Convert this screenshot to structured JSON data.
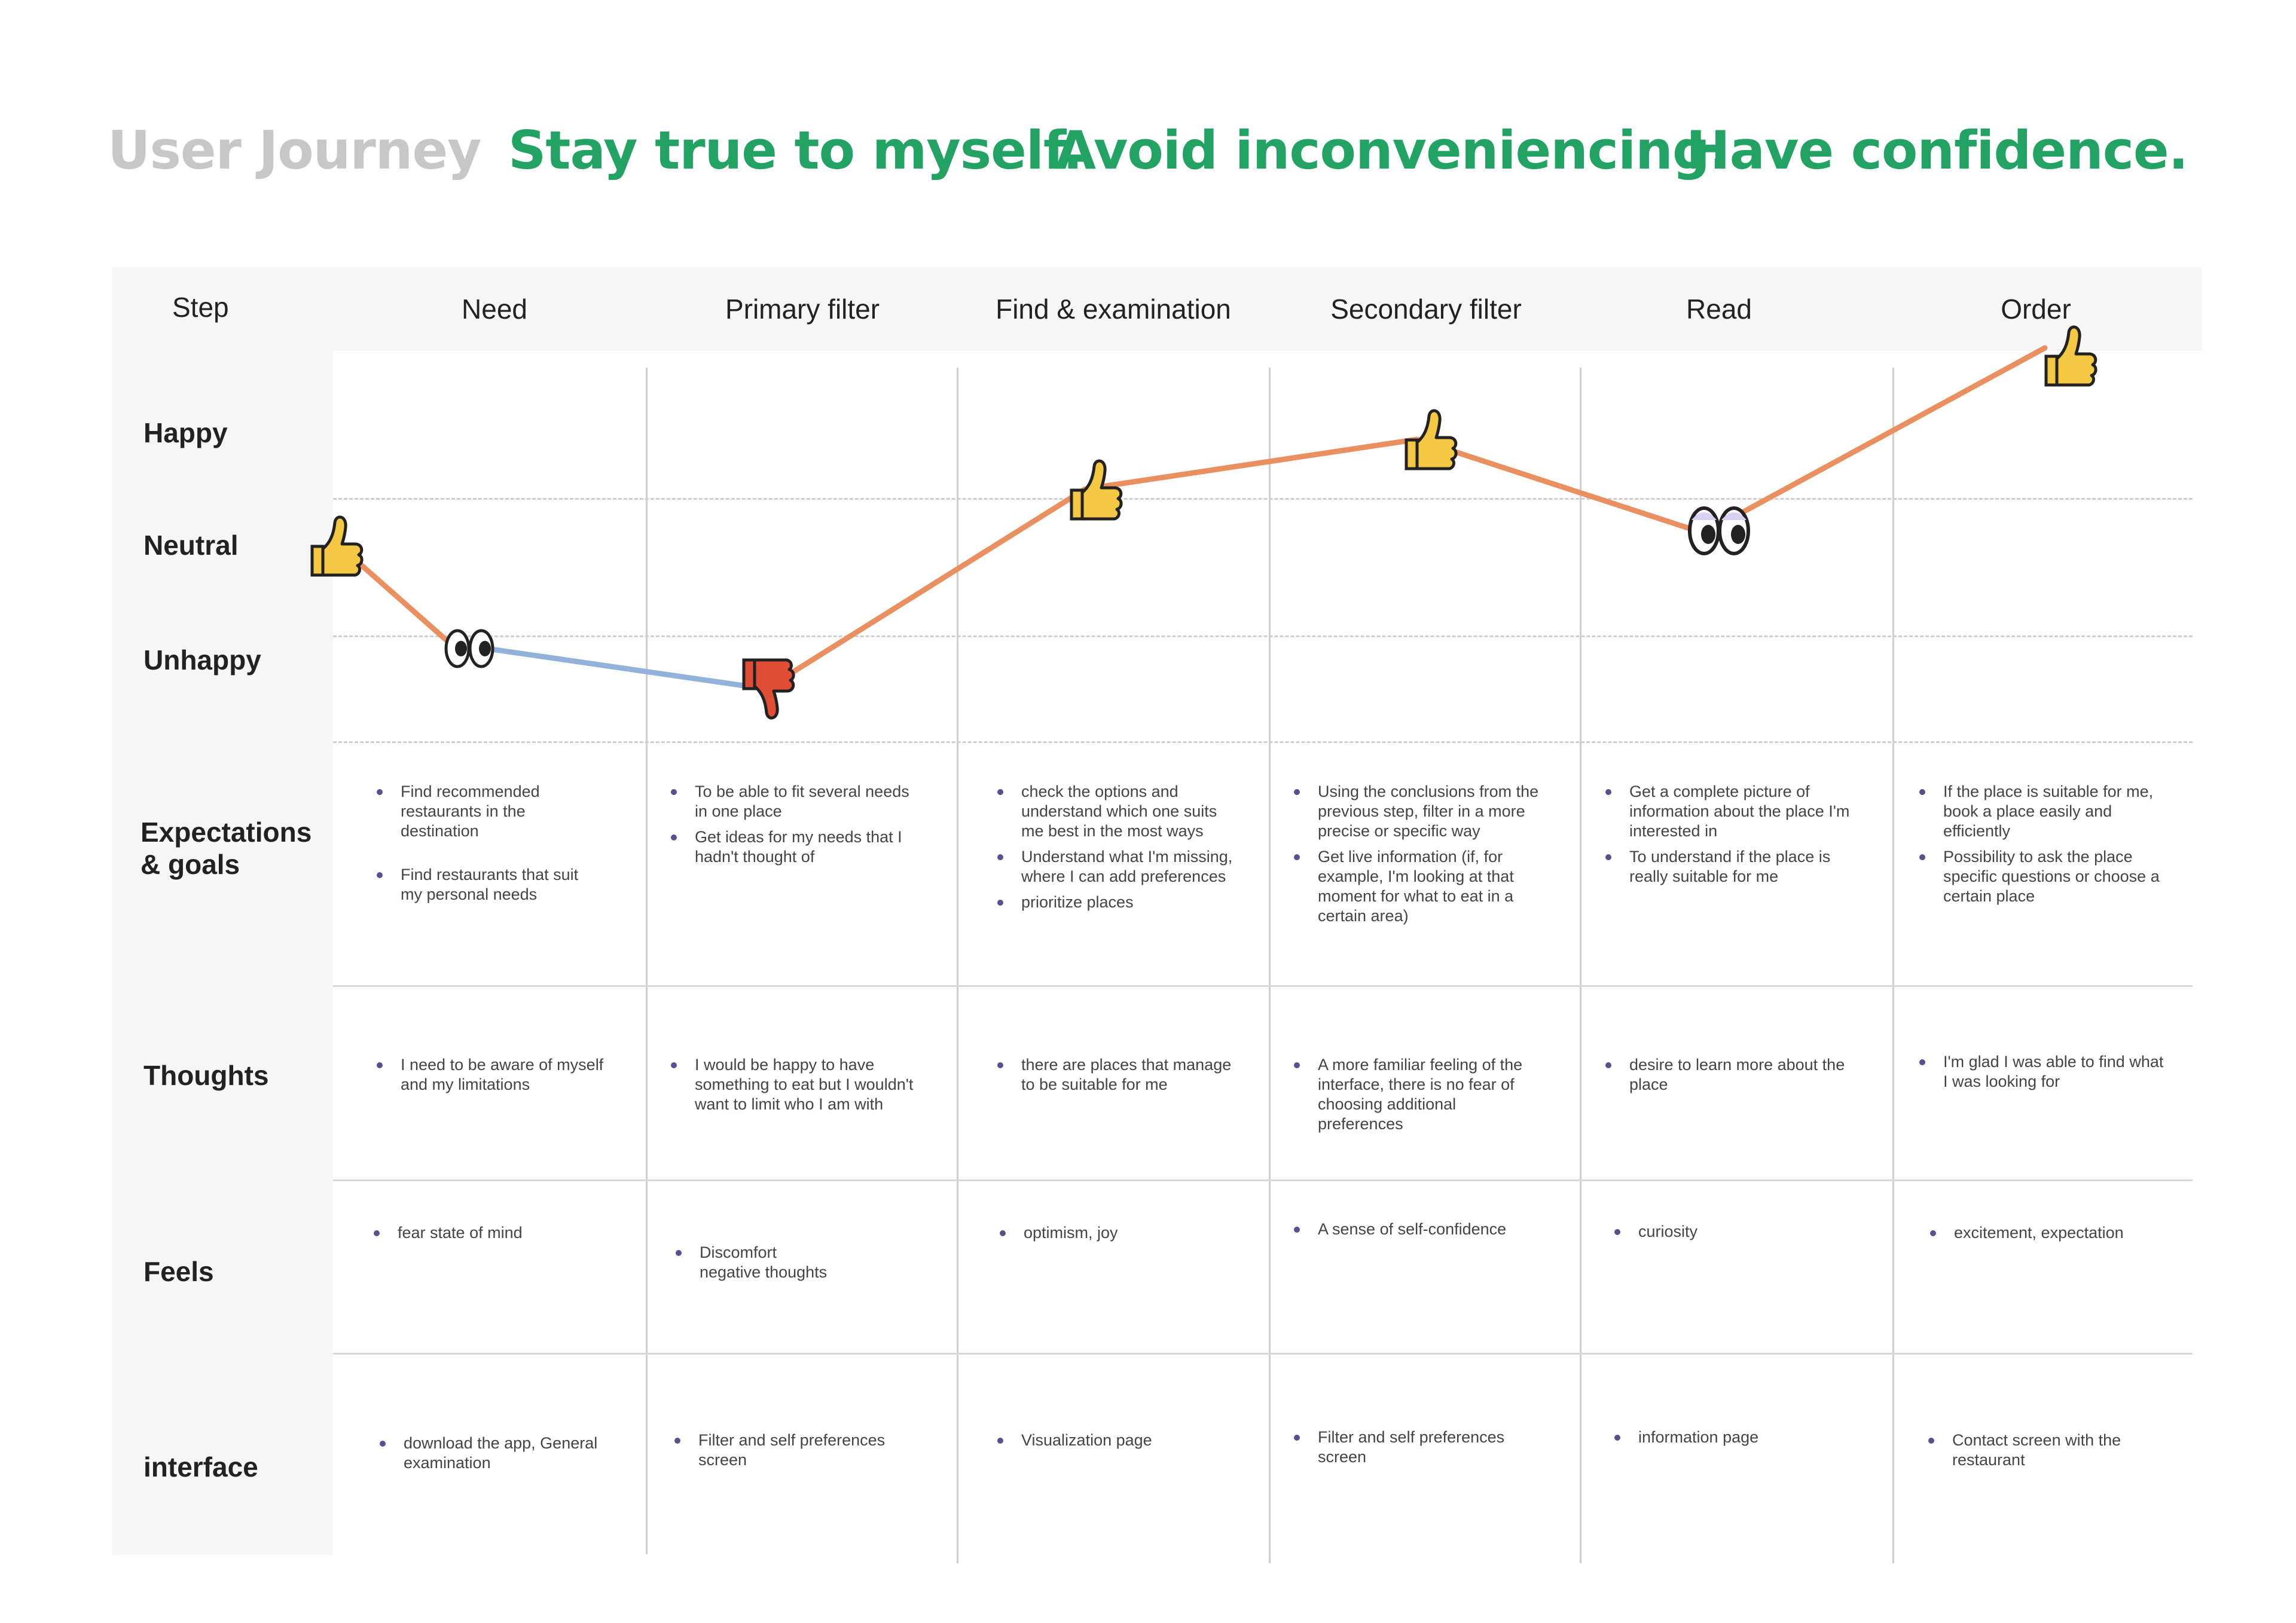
{
  "header": {
    "title": "User Journey",
    "values": [
      "Stay true to myself.",
      "Avoid inconveniencing.",
      "Have confidence."
    ]
  },
  "step_label": "Step",
  "steps": [
    "Need",
    "Primary filter",
    "Find & examination",
    "Secondary filter",
    "Read",
    "Order"
  ],
  "emotion_levels": [
    "Happy",
    "Neutral",
    "Unhappy"
  ],
  "row_labels": {
    "expectations": "Expectations\n& goals",
    "thoughts": "Thoughts",
    "feels": "Feels",
    "interface": "interface"
  },
  "emotion_points": [
    {
      "icon": "thumbs-up-icon",
      "color": "#f5c844"
    },
    {
      "icon": "eyes-icon",
      "color": "#ffffff"
    },
    {
      "icon": "thumbs-down-icon",
      "color": "#e24d35"
    },
    {
      "icon": "thumbs-up-icon",
      "color": "#f5c844"
    },
    {
      "icon": "thumbs-up-icon",
      "color": "#f5c844"
    },
    {
      "icon": "eyes-icon",
      "color": "#ffffff"
    },
    {
      "icon": "thumbs-up-icon",
      "color": "#f5c844"
    }
  ],
  "colors": {
    "accent_green": "#22a263",
    "curve_orange": "#ea9060",
    "curve_blue": "#93b2d9",
    "bullet": "#5b4f8f"
  },
  "expectations": [
    [
      "Find recommended restaurants in the destination",
      "Find restaurants that suit my personal needs"
    ],
    [
      "To be able to fit several needs in one place",
      "Get ideas for my needs that I hadn't thought of"
    ],
    [
      "check the options and understand which one suits me best in the most ways",
      "Understand what I'm missing, where I can add preferences",
      "prioritize places"
    ],
    [
      "Using the conclusions from the previous step, filter in a more precise or specific way",
      "Get live information (if, for example, I'm looking at that moment for what to eat in a certain area)"
    ],
    [
      "Get a complete picture of information about the place I'm interested in",
      "To understand if the place is really suitable for me"
    ],
    [
      "If the place is suitable for me, book a place easily and efficiently",
      "Possibility to ask the place specific questions or choose a certain place"
    ]
  ],
  "thoughts": [
    "I need to be aware of myself and my limitations",
    "I would be happy to have something to eat but I wouldn't want to limit who I am with",
    "there are places that manage to be suitable for me",
    "A more familiar feeling of the interface, there is no fear of choosing additional preferences",
    "desire to learn more about the place",
    "I'm glad I was able to find what I was looking for"
  ],
  "feels": [
    "fear state of mind",
    "Discomfort\nnegative thoughts",
    "optimism, joy",
    "A sense of self-confidence",
    "curiosity",
    "excitement, expectation"
  ],
  "interface": [
    "download the app, General examination",
    "Filter and self preferences screen",
    "Visualization page",
    "Filter and self preferences screen",
    "information page",
    "Contact screen with the restaurant"
  ]
}
